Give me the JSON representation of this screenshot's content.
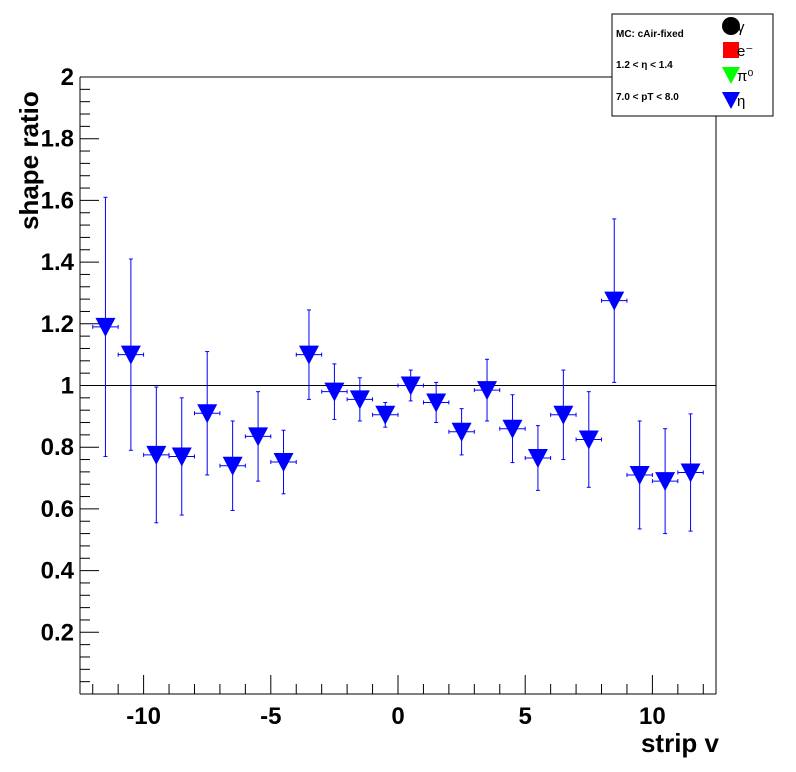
{
  "chart_data": {
    "type": "scatter",
    "title": "",
    "xlabel": "strip v",
    "ylabel": "shape ratio",
    "xlim": [
      -12.5,
      12.5
    ],
    "ylim": [
      0,
      2
    ],
    "x_ticks": [
      -10,
      -5,
      0,
      5,
      10
    ],
    "y_ticks": [
      0.2,
      0.4,
      0.6,
      0.8,
      1,
      1.2,
      1.4,
      1.6,
      1.8,
      2
    ],
    "reference_line": 1,
    "grid": false,
    "legend_position": "top-right",
    "legend": {
      "info_lines": [
        "MC: cAir-fixed",
        "1.2 < η < 1.4",
        "7.0 < pT < 8.0"
      ],
      "entries": [
        {
          "label": "γ",
          "marker": "circle",
          "color": "#000000"
        },
        {
          "label": "e⁻",
          "marker": "square",
          "color": "#ff0000"
        },
        {
          "label": "π⁰",
          "marker": "triangle-down",
          "color": "#00ff00"
        },
        {
          "label": "η",
          "marker": "triangle-down",
          "color": "#0000ff"
        }
      ]
    },
    "series": [
      {
        "name": "η",
        "color": "#0000ff",
        "marker": "triangle-down",
        "points": [
          {
            "x": -11.5,
            "y": 1.19,
            "err": 0.42
          },
          {
            "x": -10.5,
            "y": 1.1,
            "err": 0.31
          },
          {
            "x": -9.5,
            "y": 0.775,
            "err": 0.22
          },
          {
            "x": -8.5,
            "y": 0.77,
            "err": 0.19
          },
          {
            "x": -7.5,
            "y": 0.91,
            "err": 0.2
          },
          {
            "x": -6.5,
            "y": 0.74,
            "err": 0.145
          },
          {
            "x": -5.5,
            "y": 0.835,
            "err": 0.145
          },
          {
            "x": -4.5,
            "y": 0.752,
            "err": 0.103
          },
          {
            "x": -3.5,
            "y": 1.1,
            "err": 0.145
          },
          {
            "x": -2.5,
            "y": 0.98,
            "err": 0.09
          },
          {
            "x": -1.5,
            "y": 0.955,
            "err": 0.07
          },
          {
            "x": -0.5,
            "y": 0.905,
            "err": 0.04
          },
          {
            "x": 0.5,
            "y": 1.0,
            "err": 0.05
          },
          {
            "x": 1.5,
            "y": 0.945,
            "err": 0.065
          },
          {
            "x": 2.5,
            "y": 0.85,
            "err": 0.075
          },
          {
            "x": 3.5,
            "y": 0.985,
            "err": 0.1
          },
          {
            "x": 4.5,
            "y": 0.86,
            "err": 0.11
          },
          {
            "x": 5.5,
            "y": 0.765,
            "err": 0.105
          },
          {
            "x": 6.5,
            "y": 0.905,
            "err": 0.145
          },
          {
            "x": 7.5,
            "y": 0.825,
            "err": 0.155
          },
          {
            "x": 8.5,
            "y": 1.275,
            "err": 0.265
          },
          {
            "x": 9.5,
            "y": 0.71,
            "err": 0.175
          },
          {
            "x": 10.5,
            "y": 0.69,
            "err": 0.17
          },
          {
            "x": 11.5,
            "y": 0.718,
            "err": 0.19
          }
        ]
      }
    ]
  }
}
